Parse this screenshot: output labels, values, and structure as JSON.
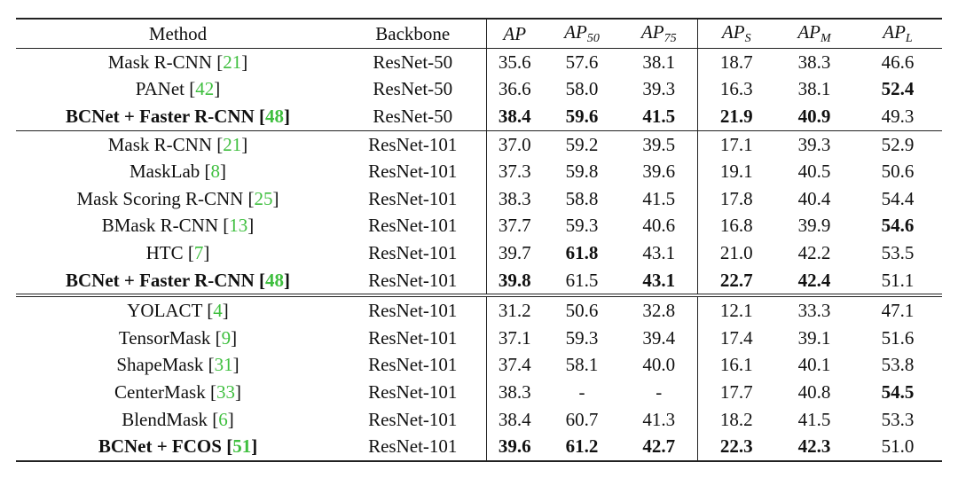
{
  "table": {
    "columns": [
      {
        "text": "Method"
      },
      {
        "text": "Backbone"
      },
      {
        "text": "AP"
      },
      {
        "text": "AP",
        "sub": "50"
      },
      {
        "text": "AP",
        "sub": "75"
      },
      {
        "text": "AP",
        "sub": "S"
      },
      {
        "text": "AP",
        "sub": "M"
      },
      {
        "text": "AP",
        "sub": "L"
      }
    ],
    "groups": [
      [
        {
          "method": "Mask R-CNN",
          "ref": "21",
          "backbone": "ResNet-50",
          "values": [
            "35.6",
            "57.6",
            "38.1",
            "18.7",
            "38.3",
            "46.6"
          ],
          "bold": []
        },
        {
          "method": "PANet",
          "ref": "42",
          "backbone": "ResNet-50",
          "values": [
            "36.6",
            "58.0",
            "39.3",
            "16.3",
            "38.1",
            "52.4"
          ],
          "bold": [
            5
          ]
        },
        {
          "method": "BCNet + Faster R-CNN",
          "ref": "48",
          "backbone": "ResNet-50",
          "values": [
            "38.4",
            "59.6",
            "41.5",
            "21.9",
            "40.9",
            "49.3"
          ],
          "bold": [
            0,
            1,
            2,
            3,
            4
          ],
          "highlight": true
        }
      ],
      [
        {
          "method": "Mask R-CNN",
          "ref": "21",
          "backbone": "ResNet-101",
          "values": [
            "37.0",
            "59.2",
            "39.5",
            "17.1",
            "39.3",
            "52.9"
          ],
          "bold": []
        },
        {
          "method": "MaskLab",
          "ref": "8",
          "backbone": "ResNet-101",
          "values": [
            "37.3",
            "59.8",
            "39.6",
            "19.1",
            "40.5",
            "50.6"
          ],
          "bold": []
        },
        {
          "method": "Mask Scoring R-CNN",
          "ref": "25",
          "backbone": "ResNet-101",
          "values": [
            "38.3",
            "58.8",
            "41.5",
            "17.8",
            "40.4",
            "54.4"
          ],
          "bold": []
        },
        {
          "method": "BMask R-CNN",
          "ref": "13",
          "backbone": "ResNet-101",
          "values": [
            "37.7",
            "59.3",
            "40.6",
            "16.8",
            "39.9",
            "54.6"
          ],
          "bold": [
            5
          ]
        },
        {
          "method": "HTC",
          "ref": "7",
          "backbone": "ResNet-101",
          "values": [
            "39.7",
            "61.8",
            "43.1",
            "21.0",
            "42.2",
            "53.5"
          ],
          "bold": [
            1
          ]
        },
        {
          "method": "BCNet + Faster R-CNN",
          "ref": "48",
          "backbone": "ResNet-101",
          "values": [
            "39.8",
            "61.5",
            "43.1",
            "22.7",
            "42.4",
            "51.1"
          ],
          "bold": [
            0,
            2,
            3,
            4
          ],
          "highlight": true
        }
      ],
      [
        {
          "method": "YOLACT",
          "ref": "4",
          "backbone": "ResNet-101",
          "values": [
            "31.2",
            "50.6",
            "32.8",
            "12.1",
            "33.3",
            "47.1"
          ],
          "bold": []
        },
        {
          "method": "TensorMask",
          "ref": "9",
          "backbone": "ResNet-101",
          "values": [
            "37.1",
            "59.3",
            "39.4",
            "17.4",
            "39.1",
            "51.6"
          ],
          "bold": []
        },
        {
          "method": "ShapeMask",
          "ref": "31",
          "backbone": "ResNet-101",
          "values": [
            "37.4",
            "58.1",
            "40.0",
            "16.1",
            "40.1",
            "53.8"
          ],
          "bold": []
        },
        {
          "method": "CenterMask",
          "ref": "33",
          "backbone": "ResNet-101",
          "values": [
            "38.3",
            "-",
            "-",
            "17.7",
            "40.8",
            "54.5"
          ],
          "bold": [
            5
          ]
        },
        {
          "method": "BlendMask",
          "ref": "6",
          "backbone": "ResNet-101",
          "values": [
            "38.4",
            "60.7",
            "41.3",
            "18.2",
            "41.5",
            "53.3"
          ],
          "bold": []
        },
        {
          "method": "BCNet + FCOS",
          "ref": "51",
          "backbone": "ResNet-101",
          "values": [
            "39.6",
            "61.2",
            "42.7",
            "22.3",
            "42.3",
            "51.0"
          ],
          "bold": [
            0,
            1,
            2,
            3,
            4
          ],
          "highlight": true
        }
      ]
    ]
  }
}
